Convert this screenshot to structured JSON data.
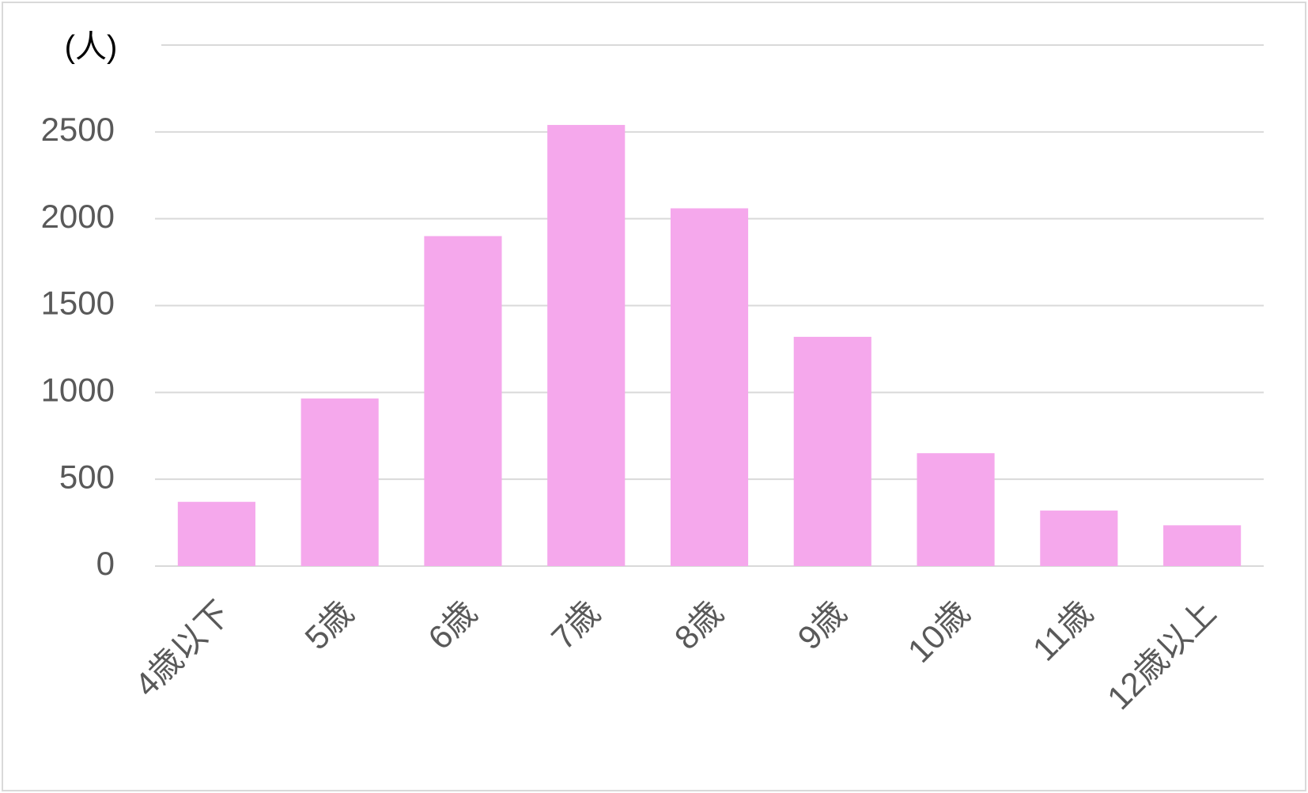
{
  "chart_data": {
    "type": "bar",
    "y_axis_label": "(人)",
    "categories": [
      "4歳以下",
      "5歳",
      "6歳",
      "7歳",
      "8歳",
      "9歳",
      "10歳",
      "11歳",
      "12歳以上"
    ],
    "values": [
      370,
      965,
      1900,
      2540,
      2060,
      1320,
      650,
      320,
      235
    ],
    "color": "#f5a8ec",
    "ylim": [
      0,
      3000
    ],
    "yticks": [
      0,
      500,
      1000,
      1500,
      2000,
      2500
    ],
    "grid": true
  }
}
